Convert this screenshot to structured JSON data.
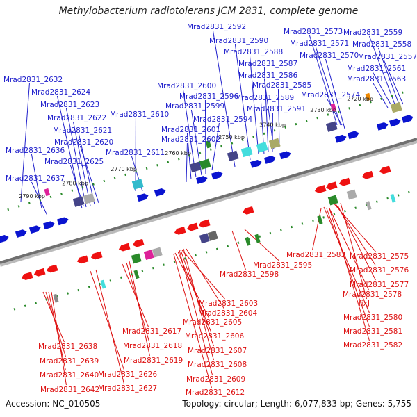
{
  "title": "Methylobacterium radiotolerans JCM 2831, complete genome",
  "accession": "Accession: NC_010505",
  "topology": "Topology: circular; Length: 6,077,833 bp; Genes: 5,755",
  "colors": {
    "forward_label": "#2020cc",
    "reverse_label": "#dd1111",
    "backbone": "#777777"
  },
  "ticks": [
    "2720 kbp",
    "2730 kbp",
    "2740 kbp",
    "2750 kbp",
    "2760 kbp",
    "2770 kbp",
    "2780 kbp",
    "2790 kbp"
  ],
  "forward_genes": [
    "Mrad2831_2559",
    "Mrad2831_2558",
    "Mrad2831_2557",
    "Mrad2831_2561",
    "Mrad2831_2563",
    "Mrad2831_2573",
    "Mrad2831_2571",
    "Mrad2831_2570",
    "Mrad2831_2574",
    "Mrad2831_2592",
    "Mrad2831_2590",
    "Mrad2831_2588",
    "Mrad2831_2587",
    "Mrad2831_2586",
    "Mrad2831_2585",
    "Mrad2831_2589",
    "Mrad2831_2591",
    "Mrad2831_2600",
    "Mrad2831_2596",
    "Mrad2831_2599",
    "Mrad2831_2594",
    "Mrad2831_2601",
    "Mrad2831_2602",
    "Mrad2831_2610",
    "Mrad2831_2611",
    "Mrad2831_2632",
    "Mrad2831_2624",
    "Mrad2831_2623",
    "Mrad2831_2622",
    "Mrad2831_2621",
    "Mrad2831_2620",
    "Mrad2831_2636",
    "Mrad2831_2625",
    "Mrad2831_2637"
  ],
  "reverse_genes": [
    "Mrad2831_2583",
    "Mrad2831_2575",
    "Mrad2831_2576",
    "Mrad2831_2577",
    "Mrad2831_2578",
    "fixJ",
    "Mrad2831_2580",
    "Mrad2831_2581",
    "Mrad2831_2582",
    "Mrad2831_2595",
    "Mrad2831_2598",
    "Mrad2831_2603",
    "Mrad2831_2604",
    "Mrad2831_2605",
    "Mrad2831_2606",
    "Mrad2831_2607",
    "Mrad2831_2608",
    "Mrad2831_2609",
    "Mrad2831_2612",
    "Mrad2831_2617",
    "Mrad2831_2618",
    "Mrad2831_2619",
    "Mrad2831_2626",
    "Mrad2831_2627",
    "Mrad2831_2638",
    "Mrad2831_2639",
    "Mrad2831_2640",
    "Mrad2831_2642"
  ]
}
